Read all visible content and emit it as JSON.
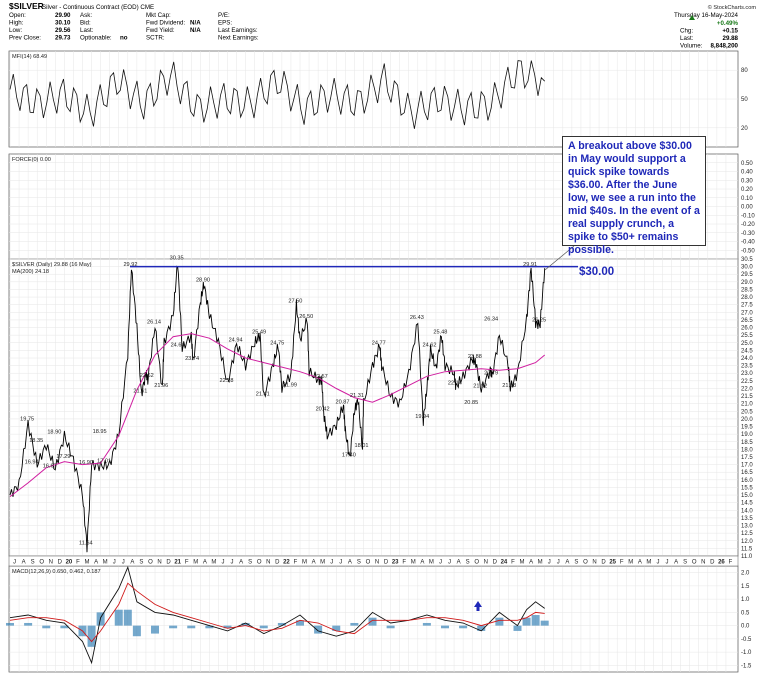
{
  "header": {
    "symbol": "$SILVER",
    "description": "Silver - Continuous Contract (EOD) CME",
    "source": "© StockCharts.com",
    "date": "Thursday 16-May-2024",
    "change_pct": "+0.49%",
    "quote_left": [
      {
        "label": "Open:",
        "value": "29.90"
      },
      {
        "label": "High:",
        "value": "30.10"
      },
      {
        "label": "Low:",
        "value": "29.56"
      },
      {
        "label": "Prev Close:",
        "value": "29.73"
      }
    ],
    "quote_mid1": [
      {
        "label": "Ask:",
        "value": ""
      },
      {
        "label": "Bid:",
        "value": ""
      },
      {
        "label": "Last:",
        "value": ""
      },
      {
        "label": "Optionable:",
        "value": "no"
      }
    ],
    "quote_mid2": [
      {
        "label": "Mkt Cap:",
        "value": ""
      },
      {
        "label": "Fwd Dividend:",
        "value": "N/A"
      },
      {
        "label": "Fwd Yield:",
        "value": "N/A"
      },
      {
        "label": "SCTR:",
        "value": ""
      }
    ],
    "quote_mid3": [
      {
        "label": "P/E:",
        "value": ""
      },
      {
        "label": "EPS:",
        "value": ""
      },
      {
        "label": "Last Earnings:",
        "value": ""
      },
      {
        "label": "Next Earnings:",
        "value": ""
      }
    ],
    "quote_right": [
      {
        "label": "Chg:",
        "value": "+0.15"
      },
      {
        "label": "Last:",
        "value": "29.88"
      },
      {
        "label": "Volume:",
        "value": "8,848,200"
      }
    ]
  },
  "colors": {
    "price": "#000000",
    "ma": "#d01ea0",
    "level": "#1f28b8",
    "macd": "#d01a1a",
    "hist": "#2a7ab0",
    "text_blue": "#1f28b8"
  },
  "callout": {
    "text": "A breakout above $30.00 in May would support a quick spike towards $36.00. After the June low, we see a run into the mid $40s. In the event of a real supply crunch, a spike to $50+ remains possible."
  },
  "level_label": "$30.00",
  "chart_data": [
    {
      "type": "line",
      "panel": "mfi",
      "legend": "MFI(14) 68.49",
      "ylim": [
        0,
        100
      ],
      "yticks": [
        20,
        50,
        80
      ],
      "x": [
        "2019-07",
        "2019-10",
        "2020-01",
        "2020-04",
        "2020-07",
        "2020-10",
        "2021-01",
        "2021-04",
        "2021-07",
        "2021-10",
        "2022-01",
        "2022-04",
        "2022-07",
        "2022-10",
        "2023-01",
        "2023-04",
        "2023-07",
        "2023-10",
        "2024-01",
        "2024-04",
        "2024-05"
      ],
      "values": [
        60,
        45,
        55,
        35,
        70,
        45,
        75,
        40,
        50,
        45,
        70,
        40,
        55,
        45,
        70,
        35,
        50,
        40,
        45,
        80,
        68.49
      ]
    },
    {
      "type": "line",
      "panel": "force",
      "legend": "FORCE(0) 0.00",
      "ylim": [
        -0.6,
        0.6
      ],
      "yticks": [
        0.5,
        0.4,
        0.3,
        0.2,
        0.1,
        0.0,
        -0.1,
        -0.2,
        -0.3,
        -0.4,
        -0.5
      ],
      "values": []
    },
    {
      "type": "line",
      "panel": "price",
      "legend_price": "$SILVER (Daily) 29.88 (16 May)",
      "legend_ma": "MA(200) 24.18",
      "ylim": [
        11.0,
        30.5
      ],
      "yticks": [
        30.5,
        30.0,
        29.5,
        29.0,
        28.5,
        28.0,
        27.5,
        27.0,
        26.5,
        26.0,
        25.5,
        25.0,
        24.5,
        24.0,
        23.5,
        23.0,
        22.5,
        22.0,
        21.5,
        21.0,
        20.5,
        20.0,
        19.5,
        19.0,
        18.5,
        18.0,
        17.5,
        17.0,
        16.5,
        16.0,
        15.5,
        15.0,
        14.5,
        14.0,
        13.5,
        13.0,
        12.5,
        12.0,
        11.5,
        11.0
      ],
      "x_months": [
        "J",
        "A",
        "S",
        "O",
        "N",
        "D",
        "20",
        "F",
        "M",
        "A",
        "M",
        "J",
        "J",
        "A",
        "S",
        "O",
        "N",
        "D",
        "21",
        "F",
        "M",
        "A",
        "M",
        "J",
        "J",
        "A",
        "S",
        "O",
        "N",
        "D",
        "22",
        "F",
        "M",
        "A",
        "M",
        "J",
        "J",
        "A",
        "S",
        "O",
        "N",
        "D",
        "23",
        "F",
        "M",
        "A",
        "M",
        "J",
        "J",
        "A",
        "S",
        "O",
        "N",
        "D",
        "24",
        "F",
        "M",
        "A",
        "M",
        "J",
        "J",
        "A",
        "S",
        "O",
        "N",
        "D",
        "25",
        "F",
        "M",
        "A",
        "M",
        "J",
        "J",
        "A",
        "S",
        "O",
        "N",
        "D",
        "26",
        "F"
      ],
      "horizontal_line": 30.0,
      "annotations": [
        {
          "label": "19.75",
          "month": 2,
          "value": 19.75
        },
        {
          "label": "18.35",
          "month": 3,
          "value": 18.35
        },
        {
          "label": "18.90",
          "month": 5,
          "value": 18.9
        },
        {
          "label": "16.94",
          "month": 2.5,
          "value": 16.94
        },
        {
          "label": "16.67",
          "month": 4.5,
          "value": 16.67
        },
        {
          "label": "17.29",
          "month": 6,
          "value": 17.29
        },
        {
          "label": "18.95",
          "month": 10,
          "value": 18.95
        },
        {
          "label": "16.90",
          "month": 8.5,
          "value": 16.9
        },
        {
          "label": "17.01",
          "month": 10.5,
          "value": 17.01
        },
        {
          "label": "11.64",
          "month": 8.5,
          "value": 11.64
        },
        {
          "label": "29.92",
          "month": 13.4,
          "value": 29.92
        },
        {
          "label": "30.35",
          "month": 18.5,
          "value": 30.35
        },
        {
          "label": "26.14",
          "month": 16,
          "value": 26.14
        },
        {
          "label": "22.62",
          "month": 15.2,
          "value": 22.62
        },
        {
          "label": "21.61",
          "month": 14.5,
          "value": 21.61
        },
        {
          "label": "21.96",
          "month": 16.8,
          "value": 21.96
        },
        {
          "label": "24.64",
          "month": 18.6,
          "value": 24.64
        },
        {
          "label": "28.90",
          "month": 21.4,
          "value": 28.9
        },
        {
          "label": "23.74",
          "month": 20.2,
          "value": 23.74
        },
        {
          "label": "24.94",
          "month": 25,
          "value": 24.94
        },
        {
          "label": "22.28",
          "month": 24,
          "value": 22.28
        },
        {
          "label": "25.49",
          "month": 27.6,
          "value": 25.49
        },
        {
          "label": "21.41",
          "month": 28,
          "value": 21.41
        },
        {
          "label": "24.75",
          "month": 29.6,
          "value": 24.75
        },
        {
          "label": "27.50",
          "month": 31.6,
          "value": 27.5
        },
        {
          "label": "26.50",
          "month": 32.8,
          "value": 26.5
        },
        {
          "label": "21.99",
          "month": 31,
          "value": 21.99
        },
        {
          "label": "22.57",
          "month": 34.4,
          "value": 22.57
        },
        {
          "label": "20.42",
          "month": 34.6,
          "value": 20.42
        },
        {
          "label": "20.87",
          "month": 36.8,
          "value": 20.87
        },
        {
          "label": "21.31",
          "month": 38.4,
          "value": 21.31
        },
        {
          "label": "18.01",
          "month": 38.9,
          "value": 18.01
        },
        {
          "label": "17.40",
          "month": 37.5,
          "value": 17.4
        },
        {
          "label": "24.77",
          "month": 40.8,
          "value": 24.77
        },
        {
          "label": "26.43",
          "month": 45,
          "value": 26.43
        },
        {
          "label": "24.62",
          "month": 46.4,
          "value": 24.62
        },
        {
          "label": "25.48",
          "month": 47.6,
          "value": 25.48
        },
        {
          "label": "19.94",
          "month": 45.6,
          "value": 19.94
        },
        {
          "label": "22.14",
          "month": 49.2,
          "value": 22.14
        },
        {
          "label": "23.88",
          "month": 51.4,
          "value": 23.88
        },
        {
          "label": "26.34",
          "month": 53.2,
          "value": 26.34
        },
        {
          "label": "22.79",
          "month": 53.2,
          "value": 22.79
        },
        {
          "label": "21.92",
          "month": 52,
          "value": 21.92
        },
        {
          "label": "20.85",
          "month": 51,
          "value": 20.85
        },
        {
          "label": "21.98",
          "month": 55.2,
          "value": 21.98
        },
        {
          "label": "26.25",
          "month": 58.5,
          "value": 26.25
        },
        {
          "label": "29.91",
          "month": 57.5,
          "value": 29.91
        }
      ],
      "series": [
        {
          "key": "price",
          "x": [
            0,
            1,
            2,
            3,
            4,
            5,
            6,
            7,
            8,
            8.5,
            9,
            10,
            11,
            12,
            13,
            13.4,
            14,
            14.5,
            15,
            15.2,
            16,
            16.8,
            17,
            18,
            18.5,
            19,
            20,
            20.2,
            21,
            21.4,
            22,
            23,
            24,
            25,
            26,
            27,
            27.6,
            28,
            29,
            29.6,
            30,
            31,
            31.6,
            32,
            32.8,
            33,
            34,
            34.4,
            34.6,
            35,
            36,
            36.8,
            37,
            37.5,
            38,
            38.4,
            38.9,
            39,
            40,
            40.8,
            41,
            42,
            43,
            44,
            45,
            45.6,
            46,
            46.4,
            47,
            47.6,
            48,
            49,
            49.2,
            50,
            51,
            51.4,
            52,
            53,
            53.2,
            54,
            55,
            55.2,
            56,
            57,
            57.5,
            58,
            58.5,
            59
          ],
          "values": [
            15,
            15.7,
            19.7,
            17.0,
            18.3,
            16.7,
            18.9,
            17.3,
            15.0,
            11.6,
            17.0,
            16.9,
            17.0,
            19.0,
            24.3,
            29.9,
            26.0,
            21.6,
            23.0,
            22.6,
            26.1,
            22.0,
            25.0,
            26.8,
            30.3,
            24.6,
            25.5,
            23.7,
            27.6,
            28.9,
            26.8,
            25.1,
            22.3,
            24.9,
            23.5,
            25.0,
            25.5,
            21.4,
            23.5,
            24.8,
            22.0,
            22.9,
            27.5,
            25.2,
            26.5,
            23.1,
            22.6,
            22.5,
            20.4,
            18.9,
            19.6,
            20.9,
            19.2,
            17.4,
            20.5,
            21.3,
            18.0,
            21.0,
            23.5,
            24.8,
            23.5,
            21.5,
            21.0,
            23.0,
            26.4,
            19.9,
            22.0,
            24.6,
            23.3,
            25.5,
            23.5,
            23.0,
            22.1,
            22.8,
            23.9,
            23.7,
            21.9,
            23.2,
            22.8,
            25.5,
            23.5,
            22.0,
            23.0,
            26.5,
            29.9,
            26.3,
            26.2,
            29.9
          ]
        },
        {
          "key": "ma200",
          "x": [
            0,
            2,
            4,
            6,
            8,
            10,
            12,
            14,
            16,
            18,
            20,
            22,
            24,
            26,
            28,
            30,
            32,
            34,
            36,
            38,
            40,
            42,
            44,
            46,
            48,
            50,
            52,
            54,
            56,
            58,
            59
          ],
          "values": [
            14.9,
            15.8,
            16.8,
            17.2,
            17.0,
            17.1,
            18.9,
            21.9,
            24.2,
            25.4,
            25.6,
            25.3,
            24.6,
            24.0,
            23.7,
            23.4,
            23.1,
            22.7,
            22.0,
            21.4,
            21.1,
            21.6,
            22.2,
            22.8,
            23.1,
            23.2,
            23.3,
            23.2,
            23.3,
            23.7,
            24.2
          ]
        }
      ]
    },
    {
      "type": "line",
      "panel": "macd",
      "legend": "MACD(12,26,9) 0.650, 0.462, 0.187",
      "ylim": [
        -1.75,
        2.25
      ],
      "yticks": [
        2.0,
        1.5,
        1.0,
        0.5,
        0.0,
        -0.5,
        -1.0,
        -1.5
      ],
      "x": [
        0,
        2,
        4,
        6,
        8,
        9,
        10,
        12,
        13,
        14,
        16,
        18,
        20,
        22,
        24,
        26,
        28,
        30,
        32,
        34,
        36,
        38,
        40,
        42,
        44,
        46,
        48,
        50,
        52,
        54,
        56,
        57,
        58,
        59
      ],
      "series": [
        {
          "name": "MACD",
          "values": [
            0.3,
            0.4,
            0.2,
            0.1,
            -0.6,
            -1.4,
            0.3,
            1.4,
            2.2,
            0.9,
            0.5,
            0.4,
            0.2,
            0.0,
            -0.2,
            0.1,
            -0.3,
            0.0,
            0.4,
            -0.2,
            -0.4,
            -0.2,
            0.5,
            0.1,
            0.2,
            0.4,
            0.2,
            0.1,
            -0.2,
            0.5,
            0.0,
            0.6,
            0.9,
            0.65
          ]
        },
        {
          "name": "Signal",
          "values": [
            0.2,
            0.3,
            0.3,
            0.2,
            -0.2,
            -0.6,
            -0.2,
            0.8,
            1.6,
            1.3,
            0.8,
            0.5,
            0.3,
            0.1,
            -0.1,
            0.0,
            -0.2,
            -0.1,
            0.2,
            0.1,
            -0.2,
            -0.3,
            0.2,
            0.2,
            0.2,
            0.3,
            0.3,
            0.2,
            0.0,
            0.2,
            0.2,
            0.3,
            0.5,
            0.462
          ]
        }
      ]
    }
  ]
}
